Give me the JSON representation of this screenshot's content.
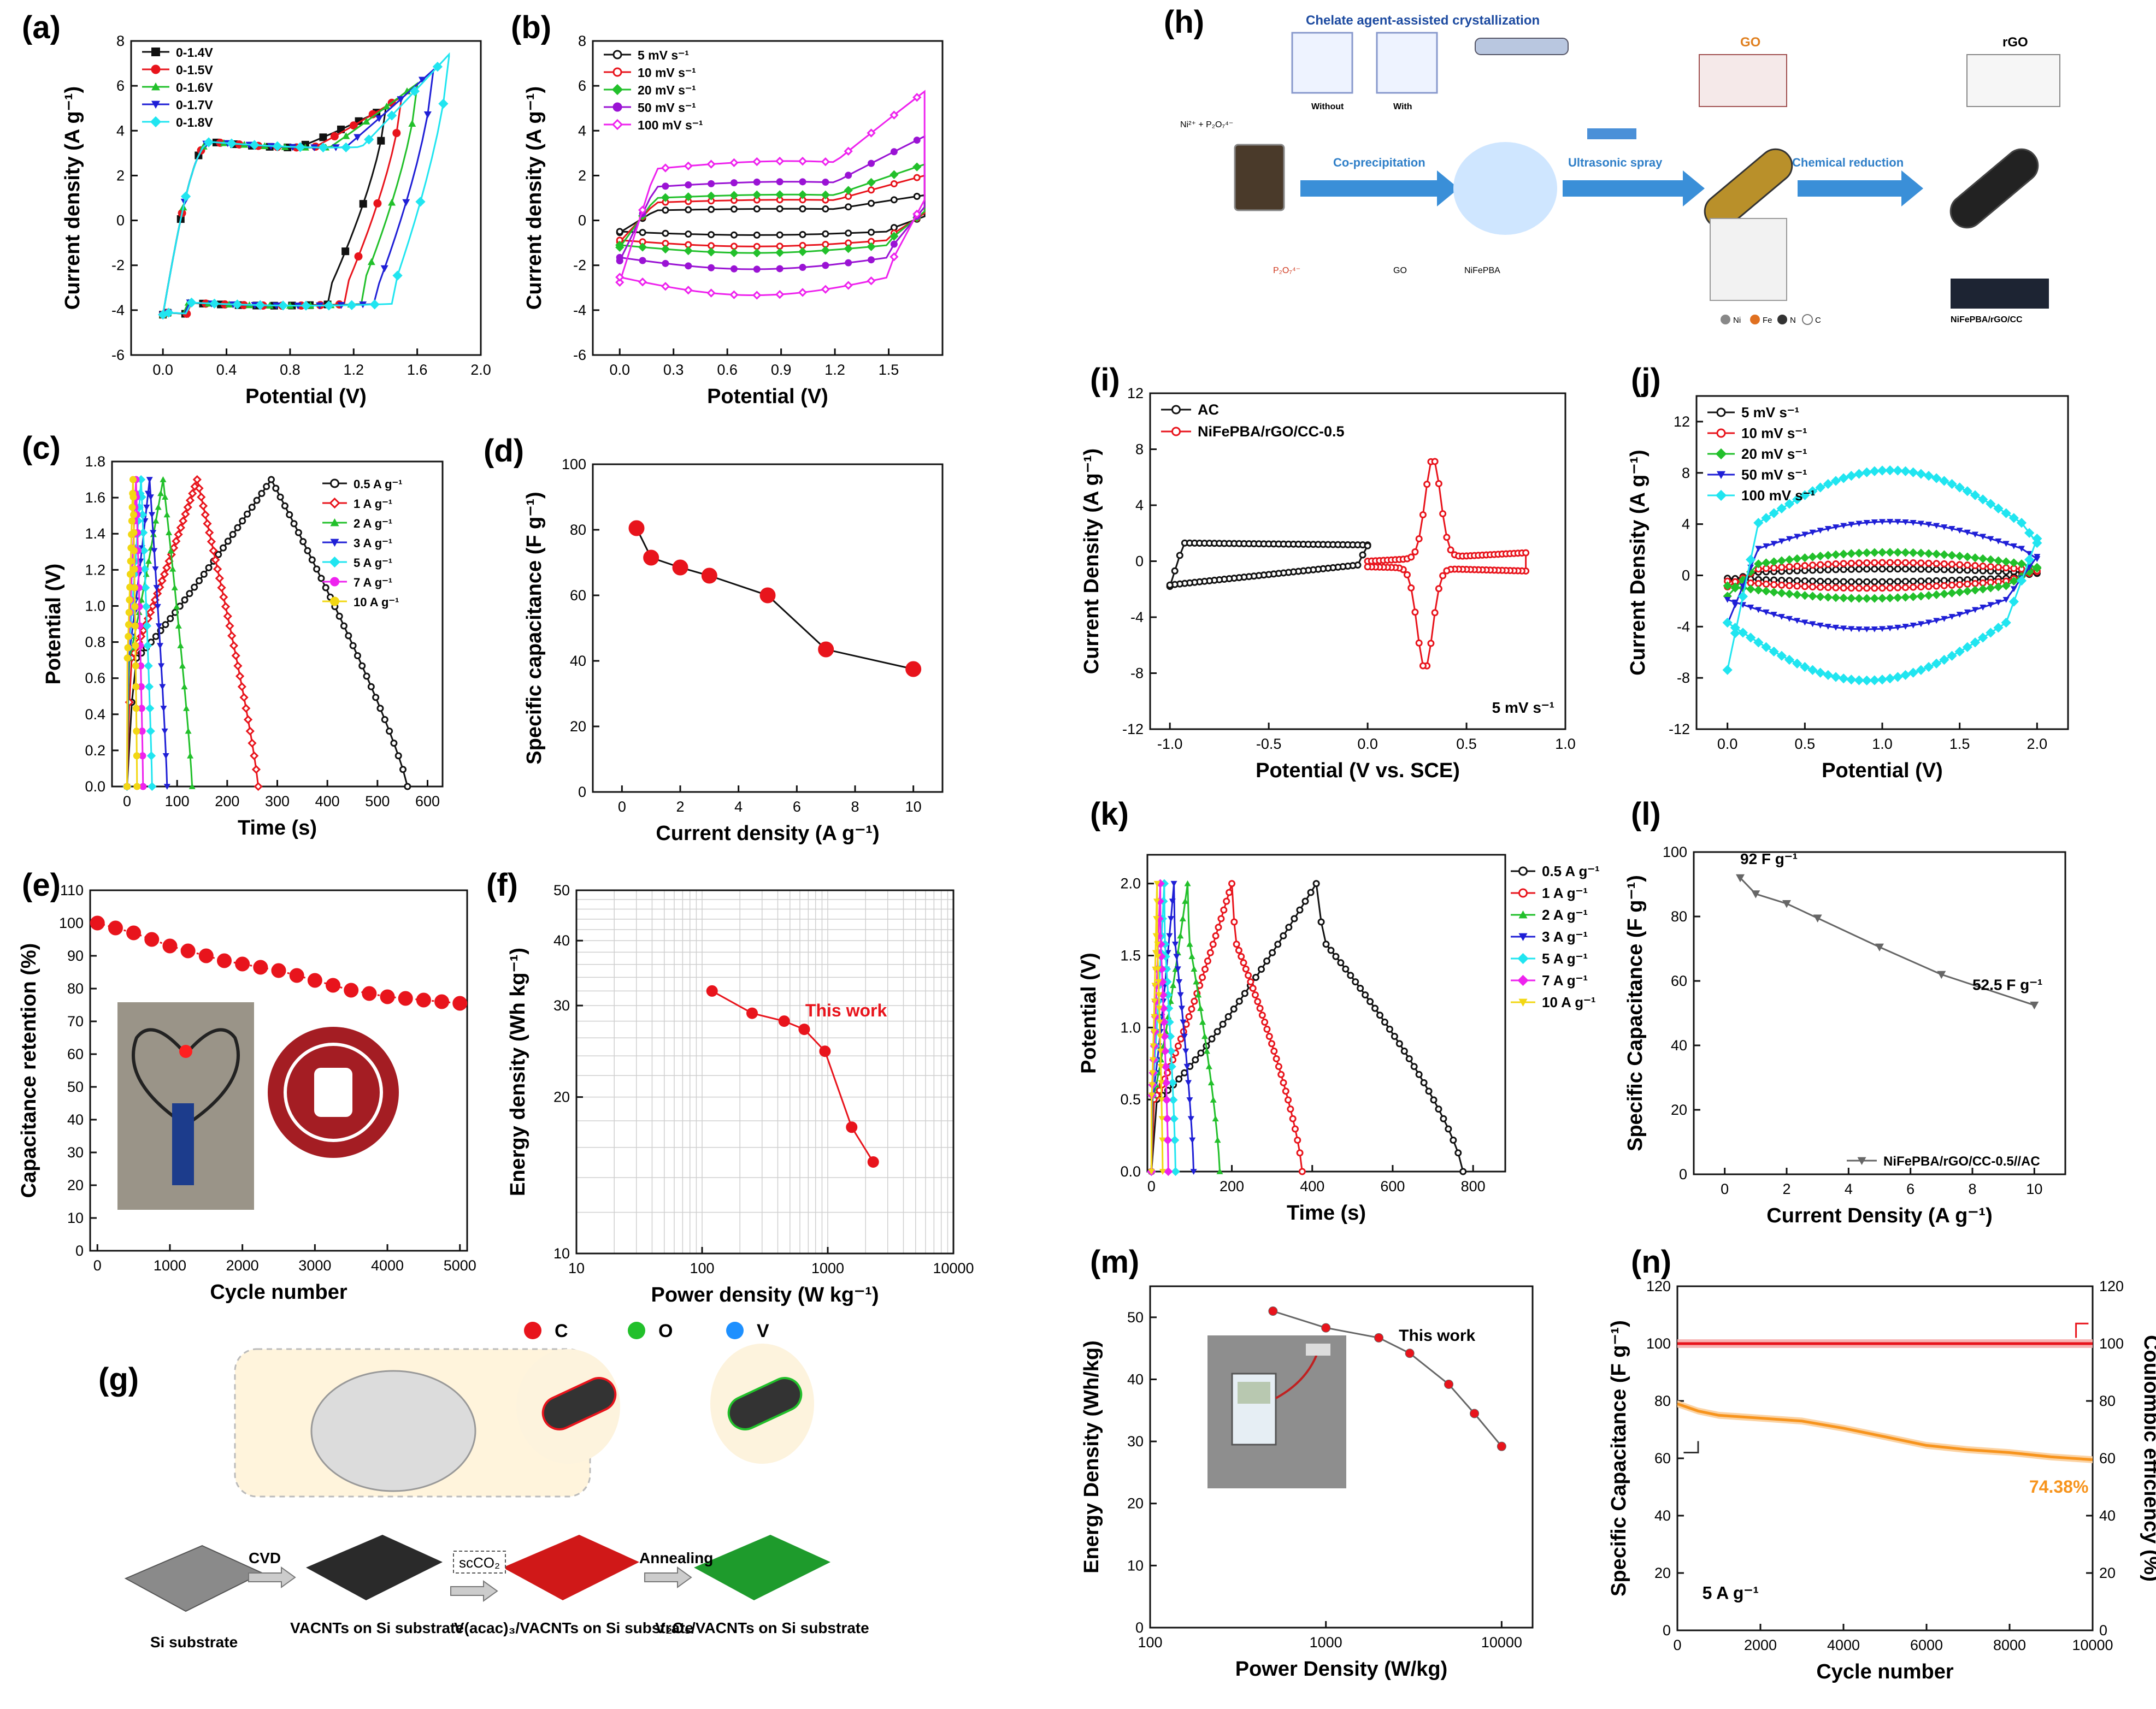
{
  "figure": {
    "panel_h": {
      "label": "(h)",
      "heading": "Chelate agent-assisted crystallization",
      "reagent": "Ni²⁺ + P₂O₇⁴⁻",
      "without": "Without",
      "with": "With",
      "steps": [
        "Co-precipitation",
        "Ultrasonic spray",
        "Chemical reduction"
      ],
      "go": "GO",
      "rgo": "rGO",
      "legend": [
        "P₂O₇⁴⁻",
        "GO",
        "NiFePBA"
      ],
      "product": "NiFePBA/rGO/CC",
      "atoms": [
        "Ni",
        "Fe",
        "N",
        "C"
      ]
    },
    "panel_g": {
      "label": "(g)",
      "legend": [
        "C",
        "O",
        "V"
      ],
      "steps": [
        "CVD",
        "scCO₂",
        "Annealing"
      ],
      "captions": [
        "Si substrate",
        "VACNTs on Si substrate",
        "V(acac)₃/VACNTs on Si substrate",
        "V₂O₅/VACNTs on Si substrate"
      ]
    },
    "inset_e": {
      "desc": "photo"
    },
    "inset_m": {
      "desc": "photo"
    }
  },
  "colors": {
    "black": "#111111",
    "red": "#e8141c",
    "green": "#22c02b",
    "blue": "#1f1fd6",
    "cyan": "#20e5f0",
    "magenta": "#ee22ee",
    "purple": "#9a13d4",
    "yellow": "#f2d713",
    "orange": "#f7941d",
    "grey": "#666666"
  },
  "chart_data": [
    {
      "id": "a",
      "label": "(a)",
      "type": "line",
      "xlabel": "Potential (V)",
      "ylabel": "Current density (A g⁻¹)",
      "xlim": [
        -0.2,
        2.0
      ],
      "ylim": [
        -6,
        8
      ],
      "xticks": [
        0.0,
        0.4,
        0.8,
        1.2,
        1.6,
        2.0
      ],
      "yticks": [
        -6,
        -4,
        -2,
        0,
        2,
        4,
        6,
        8
      ],
      "xtick_labels": [
        "0.0",
        "0.4",
        "0.8",
        "1.2",
        "1.6",
        "2.0"
      ],
      "ytick_labels": [
        "-6",
        "-4",
        "-2",
        "0",
        "2",
        "4",
        "6",
        "8"
      ],
      "legend": [
        "0-1.4V",
        "0-1.5V",
        "0-1.6V",
        "0-1.7V",
        "0-1.8V"
      ],
      "series": [
        {
          "name": "0-1.4V",
          "vmax": 1.4,
          "imax": 4.9
        },
        {
          "name": "0-1.5V",
          "vmax": 1.5,
          "imax": 5.4
        },
        {
          "name": "0-1.6V",
          "vmax": 1.6,
          "imax": 6.0
        },
        {
          "name": "0-1.7V",
          "vmax": 1.7,
          "imax": 6.6
        },
        {
          "name": "0-1.8V",
          "vmax": 1.8,
          "imax": 7.3
        }
      ]
    },
    {
      "id": "b",
      "label": "(b)",
      "type": "line",
      "xlabel": "Potential (V)",
      "ylabel": "Current density (A g⁻¹)",
      "xlim": [
        -0.15,
        1.8
      ],
      "ylim": [
        -6,
        8
      ],
      "xticks": [
        0.0,
        0.3,
        0.6,
        0.9,
        1.2,
        1.5
      ],
      "yticks": [
        -6,
        -4,
        -2,
        0,
        2,
        4,
        6,
        8
      ],
      "xtick_labels": [
        "0.0",
        "0.3",
        "0.6",
        "0.9",
        "1.2",
        "1.5"
      ],
      "ytick_labels": [
        "-6",
        "-4",
        "-2",
        "0",
        "2",
        "4",
        "6",
        "8"
      ],
      "legend": [
        "5 mV s⁻¹",
        "10 mV s⁻¹",
        "20 mV s⁻¹",
        "50 mV s⁻¹",
        "100 mV s⁻¹"
      ],
      "series": [
        {
          "name": "5 mV s⁻¹",
          "scale": 0.45
        },
        {
          "name": "10 mV s⁻¹",
          "scale": 0.8
        },
        {
          "name": "20 mV s⁻¹",
          "scale": 1.0
        },
        {
          "name": "50 mV s⁻¹",
          "scale": 1.5
        },
        {
          "name": "100 mV s⁻¹",
          "scale": 2.3
        }
      ]
    },
    {
      "id": "c",
      "label": "(c)",
      "type": "line",
      "xlabel": "Time (s)",
      "ylabel": "Potential (V)",
      "xlim": [
        -30,
        630
      ],
      "ylim": [
        0,
        1.8
      ],
      "xticks": [
        0,
        100,
        200,
        300,
        400,
        500,
        600
      ],
      "yticks": [
        0,
        0.2,
        0.4,
        0.6,
        0.8,
        1.0,
        1.2,
        1.4,
        1.6,
        1.8
      ],
      "xtick_labels": [
        "0",
        "100",
        "200",
        "300",
        "400",
        "500",
        "600"
      ],
      "ytick_labels": [
        "0.0",
        "0.2",
        "0.4",
        "0.6",
        "0.8",
        "1.0",
        "1.2",
        "1.4",
        "1.6",
        "1.8"
      ],
      "legend": [
        "0.5 A g⁻¹",
        "1 A g⁻¹",
        "2 A g⁻¹",
        "3 A g⁻¹",
        "5 A g⁻¹",
        "7 A g⁻¹",
        "10 A g⁻¹"
      ],
      "series": [
        {
          "name": "0.5 A g⁻¹",
          "t_peak": 288,
          "t_end": 560
        },
        {
          "name": "1 A g⁻¹",
          "t_peak": 140,
          "t_end": 262
        },
        {
          "name": "2 A g⁻¹",
          "t_peak": 72,
          "t_end": 130
        },
        {
          "name": "3 A g⁻¹",
          "t_peak": 45,
          "t_end": 80
        },
        {
          "name": "5 A g⁻¹",
          "t_peak": 28,
          "t_end": 50
        },
        {
          "name": "7 A g⁻¹",
          "t_peak": 18,
          "t_end": 32
        },
        {
          "name": "10 A g⁻¹",
          "t_peak": 12,
          "t_end": 20
        }
      ]
    },
    {
      "id": "d",
      "label": "(d)",
      "type": "line",
      "xlabel": "Current density (A g⁻¹)",
      "ylabel": "Specific capacitance (F g⁻¹)",
      "xlim": [
        -1,
        11
      ],
      "ylim": [
        0,
        100
      ],
      "xticks": [
        0,
        2,
        4,
        6,
        8,
        10
      ],
      "yticks": [
        0,
        20,
        40,
        60,
        80,
        100
      ],
      "xtick_labels": [
        "0",
        "2",
        "4",
        "6",
        "8",
        "10"
      ],
      "ytick_labels": [
        "0",
        "20",
        "40",
        "60",
        "80",
        "100"
      ],
      "x": [
        0.5,
        1,
        2,
        3,
        5,
        7,
        10
      ],
      "y": [
        80.5,
        71.5,
        68.5,
        66,
        60,
        43.5,
        37.5
      ]
    },
    {
      "id": "e",
      "label": "(e)",
      "type": "scatter",
      "xlabel": "Cycle number",
      "ylabel": "Capacitance retention (%)",
      "xlim": [
        -100,
        5100
      ],
      "ylim": [
        0,
        110
      ],
      "xticks": [
        0,
        1000,
        2000,
        3000,
        4000,
        5000
      ],
      "yticks": [
        0,
        10,
        20,
        30,
        40,
        50,
        60,
        70,
        80,
        90,
        100,
        110
      ],
      "xtick_labels": [
        "0",
        "1000",
        "2000",
        "3000",
        "4000",
        "5000"
      ],
      "ytick_labels": [
        "0",
        "10",
        "20",
        "30",
        "40",
        "50",
        "60",
        "70",
        "80",
        "90",
        "100",
        "110"
      ],
      "x": [
        0,
        250,
        500,
        750,
        1000,
        1250,
        1500,
        1750,
        2000,
        2250,
        2500,
        2750,
        3000,
        3250,
        3500,
        3750,
        4000,
        4250,
        4500,
        4750,
        5000
      ],
      "y": [
        100,
        98.5,
        97,
        95,
        93,
        91.5,
        90,
        88.5,
        87.5,
        86.5,
        85.5,
        84,
        82.5,
        81,
        79.5,
        78.5,
        77.5,
        77,
        76.5,
        76,
        75.5
      ]
    },
    {
      "id": "f",
      "label": "(f)",
      "type": "line",
      "xscale": "log",
      "yscale": "log",
      "xlabel": "Power density (W kg⁻¹)",
      "ylabel": "Energy density (Wh kg⁻¹)",
      "xlim": [
        10,
        10000
      ],
      "ylim": [
        10,
        50
      ],
      "xticks": [
        10,
        100,
        1000,
        10000
      ],
      "yticks": [
        10,
        20,
        30,
        40,
        50
      ],
      "xtick_labels": [
        "10",
        "100",
        "1000",
        "10000"
      ],
      "ytick_labels": [
        "10",
        "20",
        "30",
        "40",
        "50"
      ],
      "x": [
        120,
        250,
        450,
        650,
        950,
        1550,
        2300
      ],
      "y": [
        32,
        29,
        28,
        27,
        24.5,
        17.5,
        15
      ],
      "annotation": "This work"
    },
    {
      "id": "i",
      "label": "(i)",
      "type": "line",
      "xlabel": "Potential (V vs. SCE)",
      "ylabel": "Current Density (A g⁻¹)",
      "xlim": [
        -1.1,
        1.0
      ],
      "ylim": [
        -12,
        12
      ],
      "xticks": [
        -1.0,
        -0.5,
        0.0,
        0.5,
        1.0
      ],
      "yticks": [
        -12,
        -8,
        -4,
        0,
        4,
        8,
        12
      ],
      "xtick_labels": [
        "-1.0",
        "-0.5",
        "0.0",
        "0.5",
        "1.0"
      ],
      "ytick_labels": [
        "-12",
        "-8",
        "-4",
        "0",
        "4",
        "8",
        "12"
      ],
      "legend": [
        "AC",
        "NiFePBA/rGO/CC-0.5"
      ],
      "annotation": "5 mV s⁻¹",
      "series": [
        {
          "name": "AC",
          "xmin": -1.0,
          "xmax": 0.0,
          "i": 1.3
        },
        {
          "name": "NiFePBA/rGO/CC-0.5",
          "xmin": 0.0,
          "xmax": 0.8,
          "peak_ox": [
            0.33,
            7.1
          ],
          "peak_red": [
            0.29,
            -7.2
          ]
        }
      ]
    },
    {
      "id": "j",
      "label": "(j)",
      "type": "line",
      "xlabel": "Potential (V)",
      "ylabel": "Current Density (A g⁻¹)",
      "xlim": [
        -0.2,
        2.2
      ],
      "ylim": [
        -12,
        14
      ],
      "xticks": [
        0.0,
        0.5,
        1.0,
        1.5,
        2.0
      ],
      "yticks": [
        -12,
        -8,
        -4,
        0,
        4,
        8,
        12
      ],
      "xtick_labels": [
        "0.0",
        "0.5",
        "1.0",
        "1.5",
        "2.0"
      ],
      "ytick_labels": [
        "-12",
        "-8",
        "-4",
        "0",
        "4",
        "8",
        "12"
      ],
      "legend": [
        "5  mV s⁻¹",
        "10  mV s⁻¹",
        "20  mV s⁻¹",
        "50  mV s⁻¹",
        "100  mV s⁻¹"
      ],
      "series": [
        {
          "name": "5  mV s⁻¹",
          "i": 0.5
        },
        {
          "name": "10  mV s⁻¹",
          "i": 1.0
        },
        {
          "name": "20  mV s⁻¹",
          "i": 1.8
        },
        {
          "name": "50  mV s⁻¹",
          "i": 4.2
        },
        {
          "name": "100  mV s⁻¹",
          "i": 8.2
        }
      ]
    },
    {
      "id": "k",
      "label": "(k)",
      "type": "line",
      "xlabel": "Time (s)",
      "ylabel": "Potential (V)",
      "xlim": [
        -10,
        880
      ],
      "ylim": [
        0,
        2.2
      ],
      "xticks": [
        0,
        200,
        400,
        600,
        800
      ],
      "yticks": [
        0.0,
        0.5,
        1.0,
        1.5,
        2.0
      ],
      "xtick_labels": [
        "0",
        "200",
        "400",
        "600",
        "800"
      ],
      "ytick_labels": [
        "0.0",
        "0.5",
        "1.0",
        "1.5",
        "2.0"
      ],
      "legend": [
        "0.5 A g⁻¹",
        "1   A g⁻¹",
        "2   A g⁻¹",
        "3   A g⁻¹",
        "5   A g⁻¹",
        "7   A g⁻¹",
        "10  A g⁻¹"
      ],
      "series": [
        {
          "name": "0.5 A g⁻¹",
          "t_peak": 410,
          "t_end": 775
        },
        {
          "name": "1   A g⁻¹",
          "t_peak": 200,
          "t_end": 375
        },
        {
          "name": "2   A g⁻¹",
          "t_peak": 90,
          "t_end": 170
        },
        {
          "name": "3   A g⁻¹",
          "t_peak": 56,
          "t_end": 105
        },
        {
          "name": "5   A g⁻¹",
          "t_peak": 32,
          "t_end": 60
        },
        {
          "name": "7   A g⁻¹",
          "t_peak": 22,
          "t_end": 42
        },
        {
          "name": "10  A g⁻¹",
          "t_peak": 14,
          "t_end": 28
        }
      ]
    },
    {
      "id": "l",
      "label": "(l)",
      "type": "line",
      "xlabel": "Current Density (A g⁻¹)",
      "ylabel": "Specific Capacitance (F g⁻¹)",
      "xlim": [
        -1,
        11
      ],
      "ylim": [
        0,
        100
      ],
      "xticks": [
        0,
        2,
        4,
        6,
        8,
        10
      ],
      "yticks": [
        0,
        20,
        40,
        60,
        80,
        100
      ],
      "xtick_labels": [
        "0",
        "2",
        "4",
        "6",
        "8",
        "10"
      ],
      "ytick_labels": [
        "0",
        "20",
        "40",
        "60",
        "80",
        "100"
      ],
      "x": [
        0.5,
        1,
        2,
        3,
        5,
        7,
        10
      ],
      "y": [
        92,
        87,
        84,
        79.5,
        70.5,
        62,
        52.5
      ],
      "annotations": [
        "92 F g⁻¹",
        "52.5 F g⁻¹"
      ],
      "legend": [
        "NiFePBA/rGO/CC-0.5//AC"
      ]
    },
    {
      "id": "m",
      "label": "(m)",
      "type": "line",
      "xscale": "log",
      "xlabel": "Power Density (W/kg)",
      "ylabel": "Energy Density (Wh/kg)",
      "xlim": [
        100,
        15000
      ],
      "ylim": [
        0,
        55
      ],
      "xticks": [
        100,
        1000,
        10000
      ],
      "yticks": [
        0,
        10,
        20,
        30,
        40,
        50
      ],
      "xtick_labels": [
        "100",
        "1000",
        "10000"
      ],
      "ytick_labels": [
        "0",
        "10",
        "20",
        "30",
        "40",
        "50"
      ],
      "x": [
        500,
        1000,
        2000,
        3000,
        5000,
        7000,
        10000
      ],
      "y": [
        51,
        48.3,
        46.7,
        44.2,
        39.2,
        34.5,
        29.2
      ],
      "annotation": "This work"
    },
    {
      "id": "n",
      "label": "(n)",
      "type": "line",
      "xlabel": "Cycle number",
      "ylabel": "Specific Capacitance (F g⁻¹)",
      "y2label": "Coulombic efficiency (%)",
      "xlim": [
        0,
        10000
      ],
      "ylim": [
        0,
        120
      ],
      "xticks": [
        0,
        2000,
        4000,
        6000,
        8000,
        10000
      ],
      "yticks": [
        0,
        20,
        40,
        60,
        80,
        100,
        120
      ],
      "xtick_labels": [
        "0",
        "2000",
        "4000",
        "6000",
        "8000",
        "10000"
      ],
      "ytick_labels": [
        "0",
        "20",
        "40",
        "60",
        "80",
        "100",
        "120"
      ],
      "y2lim": [
        0,
        120
      ],
      "y2ticks": [
        0,
        20,
        40,
        60,
        80,
        100,
        120
      ],
      "y2tick_labels": [
        "0",
        "20",
        "40",
        "60",
        "80",
        "100",
        "120"
      ],
      "series": [
        {
          "name": "Coulombic efficiency",
          "x": [
            0,
            10000
          ],
          "y": [
            100,
            100
          ]
        },
        {
          "name": "Specific capacitance",
          "x": [
            0,
            500,
            1000,
            2000,
            3000,
            4000,
            5000,
            6000,
            7000,
            8000,
            9000,
            10000
          ],
          "y": [
            79,
            76.5,
            75,
            74,
            73,
            70.5,
            67.5,
            64.5,
            63,
            62,
            60.5,
            59.5
          ]
        }
      ],
      "annotations": [
        "74.38%",
        "5 A g⁻¹"
      ]
    }
  ]
}
